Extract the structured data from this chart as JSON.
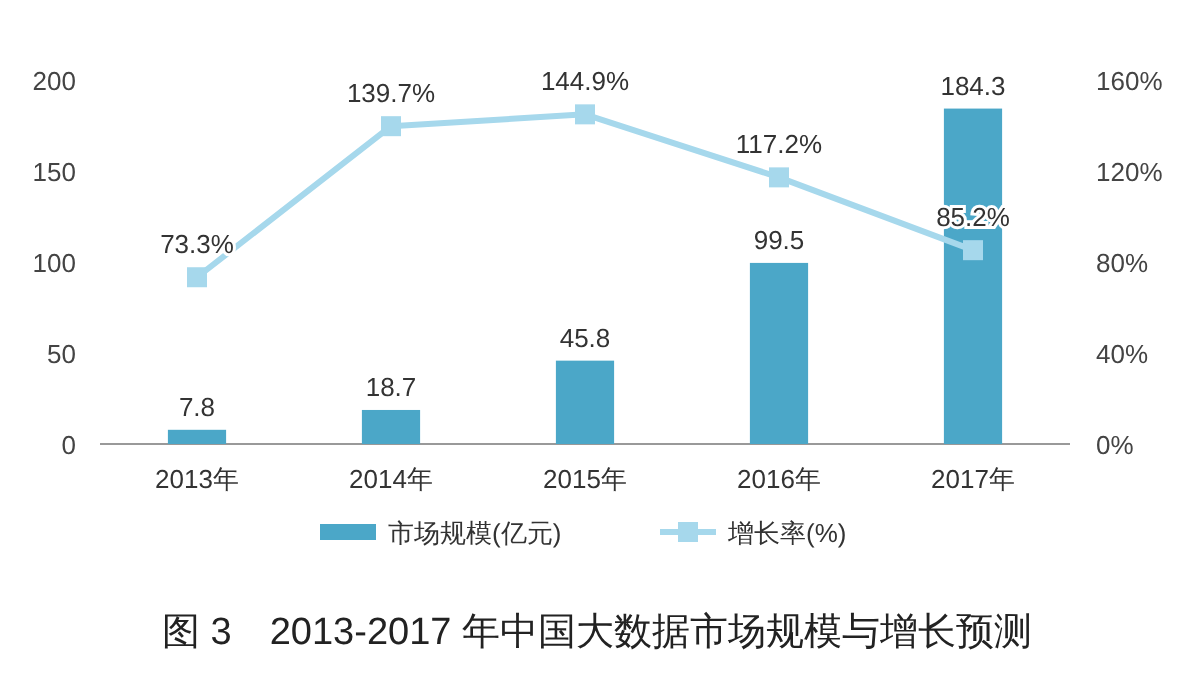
{
  "chart_data": {
    "type": "bar",
    "title": "图 3　2013-2017 年中国大数据市场规模与增长预测",
    "categories": [
      "2013年",
      "2014年",
      "2015年",
      "2016年",
      "2017年"
    ],
    "series": [
      {
        "name": "市场规模(亿元)",
        "color": "#4ba7c8",
        "values": [
          7.8,
          18.7,
          45.8,
          99.5,
          184.3
        ],
        "value_labels": [
          "7.8",
          "18.7",
          "45.8",
          "99.5",
          "184.3"
        ]
      },
      {
        "name": "增长率(%)",
        "type": "line",
        "axis": "y2",
        "color": "#a6d8ec",
        "marker": "square",
        "values": [
          73.3,
          139.7,
          144.9,
          117.2,
          85.2
        ],
        "value_labels": [
          "73.3%",
          "139.7%",
          "144.9%",
          "117.2%",
          "85.2%"
        ]
      }
    ],
    "ylim": [
      0,
      200
    ],
    "yticks": [
      0,
      50,
      100,
      150,
      200
    ],
    "y2lim": [
      0,
      160
    ],
    "y2ticks": [
      {
        "value": 0,
        "label": "0%"
      },
      {
        "value": 40,
        "label": "40%"
      },
      {
        "value": 80,
        "label": "80%"
      },
      {
        "value": 120,
        "label": "120%"
      },
      {
        "value": 160,
        "label": "160%"
      }
    ],
    "legend": "bottom",
    "grid": false
  }
}
